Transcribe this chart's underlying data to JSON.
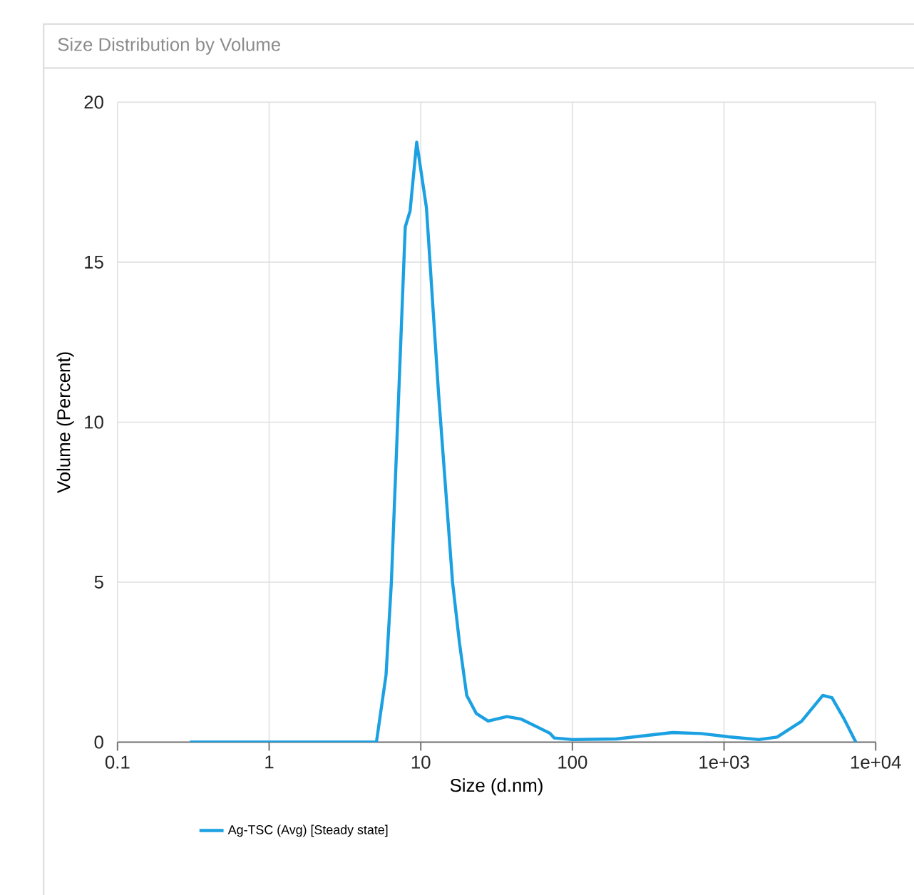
{
  "chart_data": {
    "type": "line",
    "title": "Size Distribution by Volume",
    "xlabel": "Size (d.nm)",
    "ylabel": "Volume (Percent)",
    "log": "x",
    "xlim": [
      0.1,
      10000
    ],
    "ylim": [
      0,
      20
    ],
    "xticks": [
      0.1,
      1,
      10,
      100,
      {
        "value": 1000,
        "label": "1e+03"
      },
      {
        "value": 10000,
        "label": "1e+04"
      }
    ],
    "yticks": [
      0,
      5,
      10,
      15,
      20
    ],
    "grid": true,
    "legend": "bottom",
    "marker": "none",
    "line_style": "solid",
    "series": [
      {
        "name": "Ag-TSC (Avg) [Steady state]",
        "color": "#1ba1e2",
        "x": [
          0.3,
          1,
          3,
          5.1,
          5.9,
          6.4,
          7.9,
          8.5,
          9.4,
          10.9,
          13.1,
          16.2,
          18,
          20.1,
          23.2,
          27.8,
          37,
          46,
          71,
          76,
          100,
          195,
          457,
          703,
          1100,
          1700,
          2240,
          3240,
          4480,
          5150,
          6200,
          7400
        ],
        "values": [
          0,
          0,
          0,
          0,
          2.1,
          5.0,
          16.1,
          16.6,
          18.75,
          16.7,
          10.9,
          5.0,
          3.1,
          1.46,
          0.9,
          0.66,
          0.8,
          0.72,
          0.28,
          0.13,
          0.08,
          0.1,
          0.3,
          0.27,
          0.16,
          0.08,
          0.16,
          0.65,
          1.46,
          1.39,
          0.72,
          0
        ]
      }
    ]
  }
}
